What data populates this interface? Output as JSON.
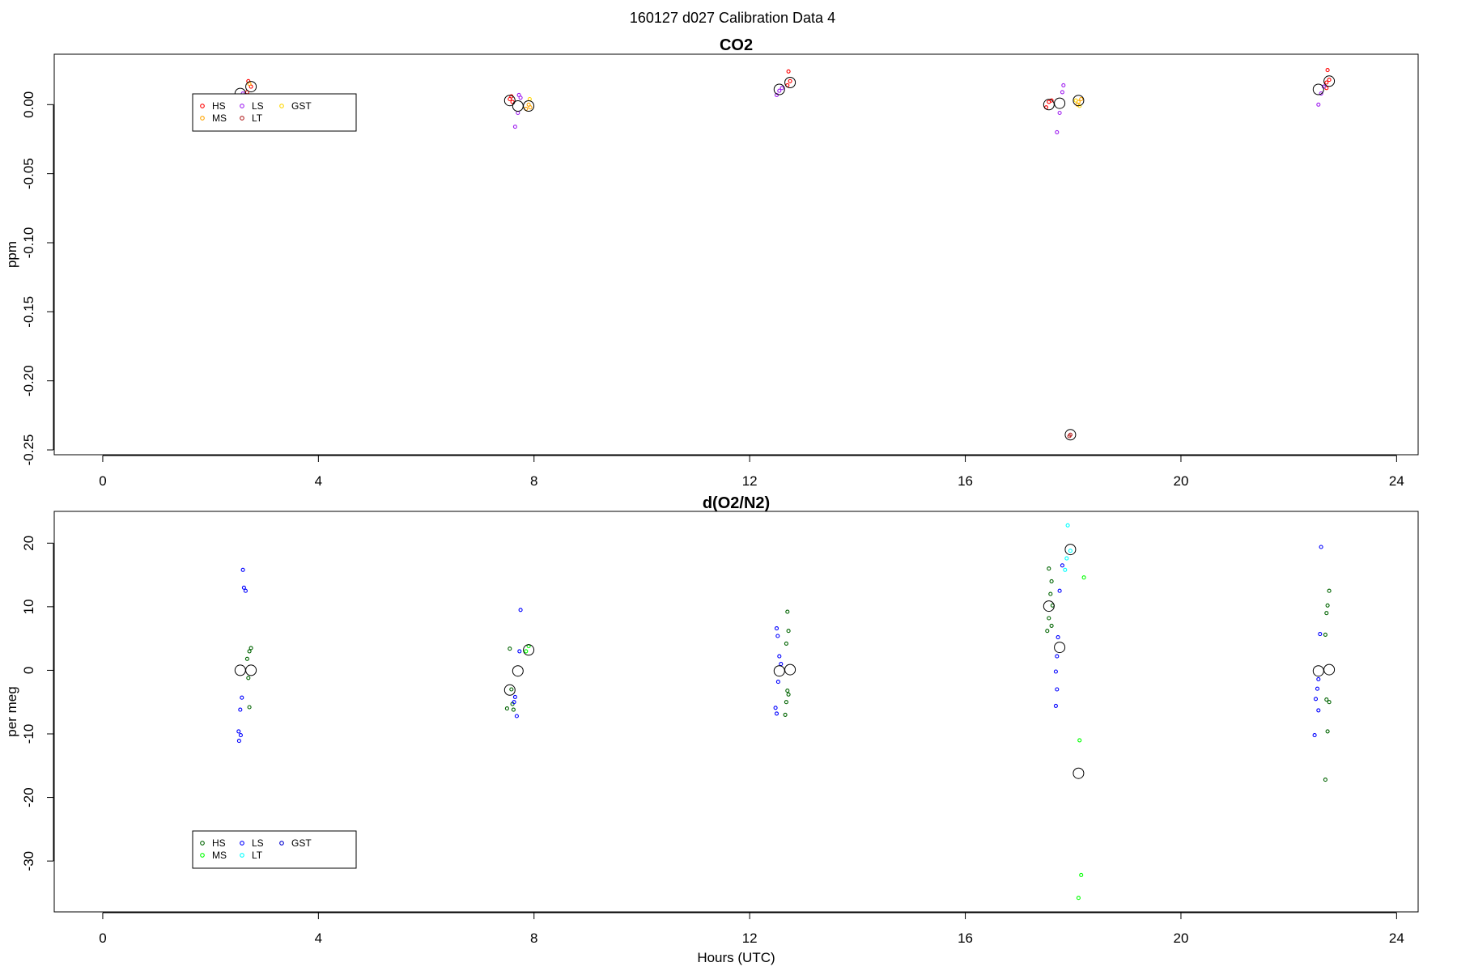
{
  "page_title": "160127   d027   Calibration Data 4",
  "chart_data": [
    {
      "type": "scatter",
      "title": "CO2",
      "xlabel": "",
      "ylabel": "ppm",
      "xlim": [
        -0.9,
        24.4
      ],
      "ylim": [
        -0.2535,
        0.0365
      ],
      "xticks": [
        0,
        4,
        8,
        12,
        16,
        20,
        24
      ],
      "xtick_labels": [
        "0",
        "4",
        "8",
        "12",
        "16",
        "20",
        "24"
      ],
      "yticks": [
        0.0,
        -0.05,
        -0.1,
        -0.15,
        -0.2,
        -0.25
      ],
      "ytick_labels": [
        "0.00",
        "-0.05",
        "-0.10",
        "-0.15",
        "-0.20",
        "-0.25"
      ],
      "legend": {
        "position": "top-left",
        "entries": [
          {
            "name": "HS",
            "color": "#ff0000"
          },
          {
            "name": "MS",
            "color": "#ffa500"
          },
          {
            "name": "LS",
            "color": "#a020f0"
          },
          {
            "name": "LT",
            "color": "#b22222"
          },
          {
            "name": "GST",
            "color": "#ffd700"
          }
        ]
      },
      "series": [
        {
          "name": "HS",
          "color": "#ff0000",
          "points": [
            [
              2.7,
              0.017
            ],
            [
              2.75,
              0.013
            ],
            [
              2.68,
              0.009
            ],
            [
              7.55,
              0.004
            ],
            [
              7.6,
              0.002
            ],
            [
              7.58,
              0.006
            ],
            [
              12.75,
              0.017
            ],
            [
              12.7,
              0.014
            ],
            [
              12.72,
              0.024
            ],
            [
              17.55,
              0.002
            ],
            [
              17.5,
              -0.002
            ],
            [
              17.6,
              0.003
            ],
            [
              22.7,
              0.016
            ],
            [
              22.75,
              0.018
            ],
            [
              22.72,
              0.025
            ],
            [
              22.7,
              0.012
            ]
          ]
        },
        {
          "name": "MS",
          "color": "#ffa500",
          "points": [
            [
              2.72,
              0.015
            ],
            [
              7.9,
              0.0
            ],
            [
              7.85,
              -0.003
            ],
            [
              7.93,
              -0.002
            ],
            [
              18.1,
              0.002
            ],
            [
              18.15,
              0.004
            ],
            [
              18.08,
              0.0
            ]
          ]
        },
        {
          "name": "LS",
          "color": "#a020f0",
          "points": [
            [
              2.6,
              0.008
            ],
            [
              2.55,
              0.006
            ],
            [
              7.65,
              -0.016
            ],
            [
              7.7,
              -0.006
            ],
            [
              7.72,
              0.007
            ],
            [
              7.75,
              0.005
            ],
            [
              12.5,
              0.007
            ],
            [
              12.55,
              0.01
            ],
            [
              12.6,
              0.012
            ],
            [
              17.7,
              -0.02
            ],
            [
              17.75,
              -0.006
            ],
            [
              17.8,
              0.009
            ],
            [
              17.82,
              0.014
            ],
            [
              22.55,
              0.0
            ],
            [
              22.6,
              0.008
            ],
            [
              22.65,
              0.013
            ]
          ]
        },
        {
          "name": "LT",
          "color": "#b22222",
          "points": [
            [
              17.95,
              -0.239
            ],
            [
              17.93,
              -0.24
            ]
          ]
        },
        {
          "name": "GST",
          "color": "#ffd700",
          "points": [
            [
              7.92,
              0.004
            ],
            [
              18.12,
              -0.001
            ],
            [
              18.05,
              0.003
            ]
          ]
        },
        {
          "name": "",
          "color": "#000000",
          "large": true,
          "points": [
            [
              2.55,
              0.008
            ],
            [
              2.75,
              0.013
            ],
            [
              7.55,
              0.003
            ],
            [
              7.7,
              -0.001
            ],
            [
              7.9,
              -0.001
            ],
            [
              12.55,
              0.011
            ],
            [
              12.75,
              0.016
            ],
            [
              17.55,
              0.0
            ],
            [
              17.75,
              0.001
            ],
            [
              17.95,
              -0.239
            ],
            [
              18.1,
              0.003
            ],
            [
              22.55,
              0.011
            ],
            [
              22.75,
              0.017
            ]
          ]
        }
      ]
    },
    {
      "type": "scatter",
      "title": "d(O2/N2)",
      "xlabel": "Hours (UTC)",
      "ylabel": "per meg",
      "xlim": [
        -0.9,
        24.4
      ],
      "ylim": [
        -38.0,
        25.0
      ],
      "xticks": [
        0,
        4,
        8,
        12,
        16,
        20,
        24
      ],
      "xtick_labels": [
        "0",
        "4",
        "8",
        "12",
        "16",
        "20",
        "24"
      ],
      "yticks": [
        20,
        10,
        0,
        -10,
        -20,
        -30
      ],
      "ytick_labels": [
        "20",
        "10",
        "0",
        "-10",
        "-20",
        "-30"
      ],
      "legend": {
        "position": "bottom-left",
        "entries": [
          {
            "name": "HS",
            "color": "#006400"
          },
          {
            "name": "MS",
            "color": "#00ff00"
          },
          {
            "name": "LS",
            "color": "#0000ff"
          },
          {
            "name": "LT",
            "color": "#00ffff"
          },
          {
            "name": "GST",
            "color": "#0000cd"
          }
        ]
      },
      "series": [
        {
          "name": "HS",
          "color": "#006400",
          "points": [
            [
              2.75,
              3.5
            ],
            [
              2.72,
              3.0
            ],
            [
              2.68,
              1.8
            ],
            [
              2.7,
              -1.2
            ],
            [
              2.72,
              -5.8
            ],
            [
              7.55,
              3.4
            ],
            [
              7.58,
              -3.0
            ],
            [
              7.6,
              -5.3
            ],
            [
              7.62,
              -6.2
            ],
            [
              7.5,
              -6.0
            ],
            [
              12.7,
              9.2
            ],
            [
              12.72,
              6.2
            ],
            [
              12.68,
              4.2
            ],
            [
              12.7,
              -3.2
            ],
            [
              12.72,
              -3.8
            ],
            [
              12.68,
              -5.0
            ],
            [
              12.66,
              -7.0
            ],
            [
              17.55,
              16.0
            ],
            [
              17.6,
              14.0
            ],
            [
              17.58,
              12.0
            ],
            [
              17.62,
              10.2
            ],
            [
              17.55,
              8.2
            ],
            [
              17.6,
              7.0
            ],
            [
              17.52,
              6.2
            ],
            [
              22.75,
              12.5
            ],
            [
              22.72,
              10.2
            ],
            [
              22.7,
              9.0
            ],
            [
              22.68,
              5.6
            ],
            [
              22.7,
              -4.6
            ],
            [
              22.75,
              -5.0
            ],
            [
              22.72,
              -9.6
            ],
            [
              22.68,
              -17.2
            ]
          ]
        },
        {
          "name": "MS",
          "color": "#00ff00",
          "points": [
            [
              7.9,
              3.8
            ],
            [
              7.85,
              3.0
            ],
            [
              18.2,
              14.6
            ],
            [
              18.12,
              -11.0
            ],
            [
              18.15,
              -32.2
            ],
            [
              18.1,
              -35.8
            ]
          ]
        },
        {
          "name": "LS",
          "color": "#0000ff",
          "points": [
            [
              2.6,
              15.8
            ],
            [
              2.62,
              13.0
            ],
            [
              2.65,
              12.5
            ],
            [
              2.58,
              -4.3
            ],
            [
              2.55,
              -6.2
            ],
            [
              2.52,
              -9.6
            ],
            [
              2.56,
              -10.2
            ],
            [
              2.53,
              -11.1
            ],
            [
              7.75,
              9.5
            ],
            [
              7.73,
              3.0
            ],
            [
              7.65,
              -4.2
            ],
            [
              7.63,
              -5.0
            ],
            [
              7.68,
              -7.2
            ],
            [
              12.5,
              6.6
            ],
            [
              12.52,
              5.4
            ],
            [
              12.55,
              2.2
            ],
            [
              12.58,
              1.0
            ],
            [
              12.53,
              -1.8
            ],
            [
              12.48,
              -5.9
            ],
            [
              12.5,
              -6.8
            ],
            [
              17.8,
              16.5
            ],
            [
              17.75,
              12.5
            ],
            [
              17.72,
              5.2
            ],
            [
              17.7,
              2.2
            ],
            [
              17.68,
              -0.2
            ],
            [
              17.7,
              -3.0
            ],
            [
              17.68,
              -5.6
            ],
            [
              22.6,
              19.4
            ],
            [
              22.58,
              5.7
            ],
            [
              22.55,
              -1.4
            ],
            [
              22.53,
              -2.9
            ],
            [
              22.5,
              -4.5
            ],
            [
              22.55,
              -6.3
            ],
            [
              22.48,
              -10.2
            ]
          ]
        },
        {
          "name": "LT",
          "color": "#00ffff",
          "points": [
            [
              17.9,
              22.8
            ],
            [
              17.95,
              18.8
            ],
            [
              17.88,
              17.6
            ],
            [
              17.85,
              15.8
            ]
          ]
        },
        {
          "name": "",
          "color": "#000000",
          "large": true,
          "points": [
            [
              2.55,
              0.0
            ],
            [
              2.75,
              0.0
            ],
            [
              7.55,
              -3.1
            ],
            [
              7.7,
              -0.1
            ],
            [
              7.9,
              3.2
            ],
            [
              12.55,
              -0.1
            ],
            [
              12.75,
              0.1
            ],
            [
              17.55,
              10.1
            ],
            [
              17.75,
              3.6
            ],
            [
              17.95,
              19.0
            ],
            [
              18.1,
              -16.2
            ],
            [
              22.55,
              -0.1
            ],
            [
              22.75,
              0.1
            ]
          ]
        }
      ]
    }
  ]
}
